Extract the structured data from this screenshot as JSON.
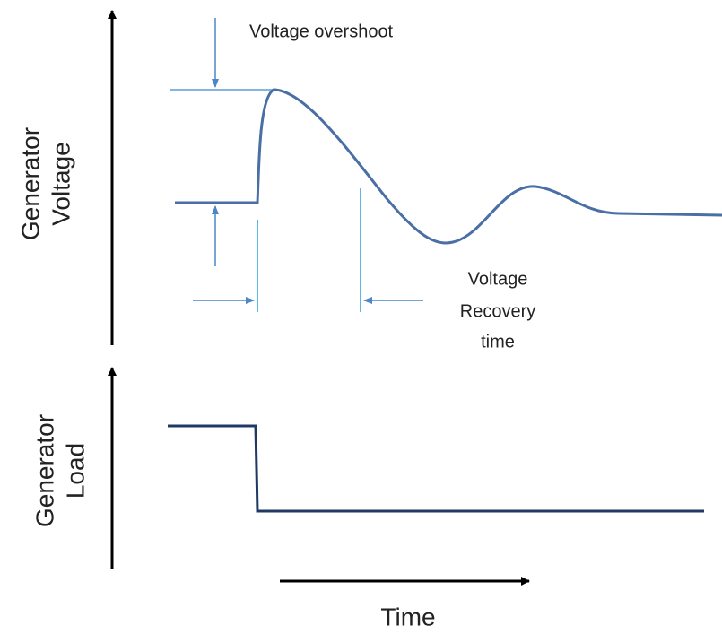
{
  "labels": {
    "overshoot": "Voltage overshoot",
    "recovery": [
      "Voltage",
      "Recovery",
      "time"
    ],
    "y_top": [
      "Generator",
      "Voltage"
    ],
    "y_bottom": [
      "Generator",
      "Load"
    ],
    "x": "Time"
  }
}
